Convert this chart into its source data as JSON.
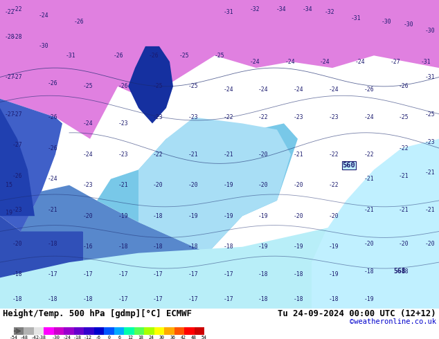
{
  "title_left": "Height/Temp. 500 hPa [gdmp][°C] ECMWF",
  "title_right": "Tu 24-09-2024 00:00 UTC (12+12)",
  "credit": "©weatheronline.co.uk",
  "colorbar_colors": [
    "#7f7f7f",
    "#b2b2b2",
    "#e5e5e5",
    "#ff00ff",
    "#cc00cc",
    "#9900cc",
    "#6600cc",
    "#3300cc",
    "#0000cc",
    "#0055ff",
    "#00aaff",
    "#00ffaa",
    "#55ff55",
    "#aaff00",
    "#ffff00",
    "#ffaa00",
    "#ff5500",
    "#ff0000",
    "#cc0000"
  ],
  "colorbar_tick_labels": [
    "-54",
    "-48",
    "-42",
    "-38",
    "-30",
    "-24",
    "-18",
    "-12",
    "-6",
    "0",
    "6",
    "12",
    "18",
    "24",
    "30",
    "36",
    "42",
    "48",
    "54"
  ],
  "colorbar_ticks": [
    -54,
    -48,
    -42,
    -38,
    -30,
    -24,
    -18,
    -12,
    -6,
    0,
    6,
    12,
    18,
    24,
    30,
    36,
    42,
    48,
    54
  ],
  "fig_width": 6.34,
  "fig_height": 4.9,
  "dpi": 100,
  "bottom_bar_color": "#00d4ff"
}
